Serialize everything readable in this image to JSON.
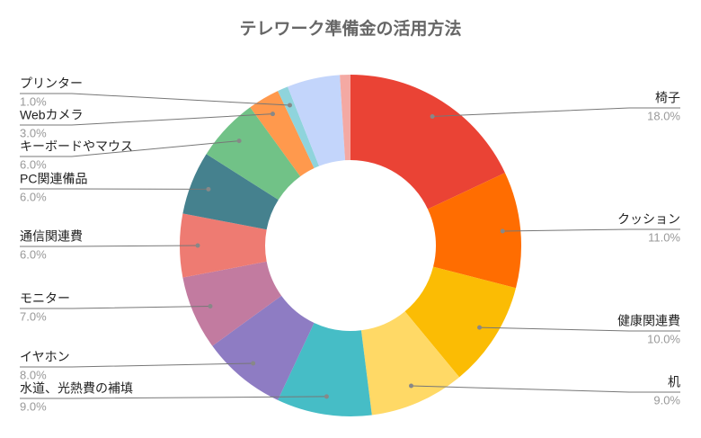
{
  "chart_data": {
    "type": "donut",
    "title": "テレワーク準備金の活用方法",
    "categories": [
      "椅子",
      "クッション",
      "健康関連費",
      "机",
      "水道、光熱費の補填",
      "イヤホン",
      "モニター",
      "通信関連費",
      "PC関連備品",
      "キーボードやマウス",
      "Webカメラ",
      "プリンター",
      null,
      null
    ],
    "values": [
      18,
      11,
      10,
      9,
      9,
      8,
      7,
      6,
      6,
      6,
      3,
      1,
      5,
      1
    ],
    "value_labels": [
      "18.0%",
      "11.0%",
      "10.0%",
      "9.0%",
      "9.0%",
      "8.0%",
      "7.0%",
      "6.0%",
      "6.0%",
      "6.0%",
      "3.0%",
      "1.0%",
      null,
      null
    ],
    "colors": [
      "#ea4335",
      "#ff6d01",
      "#fbbc04",
      "#ffd966",
      "#46bdc6",
      "#8e7cc3",
      "#c27ba0",
      "#ee7b72",
      "#45818e",
      "#71c287",
      "#ff994d",
      "#8fd4dc",
      "#c3d5fb",
      "#f4a9a3"
    ]
  }
}
